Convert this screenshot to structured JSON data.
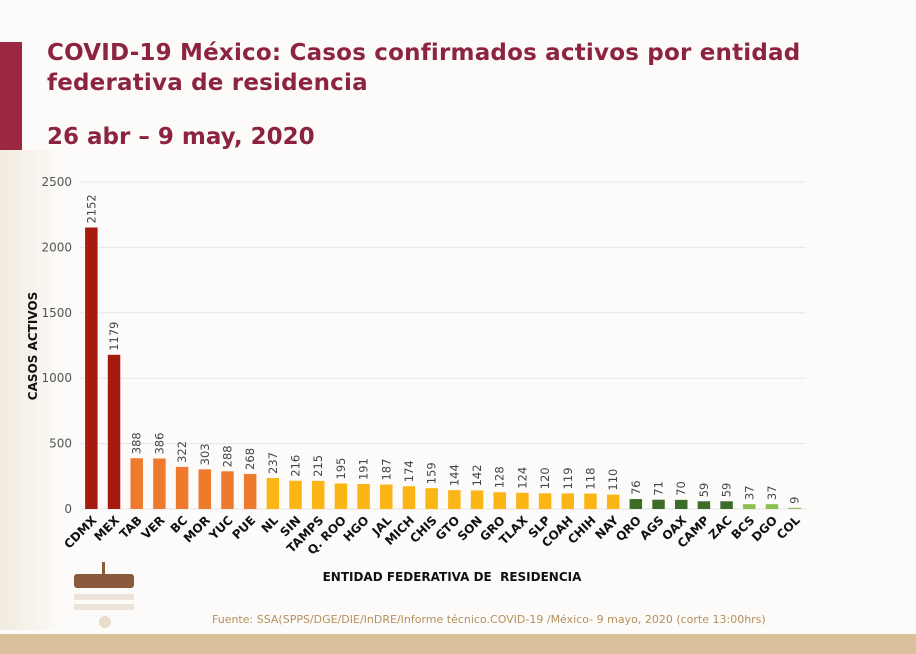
{
  "header": {
    "title": "COVID-19 México: Casos confirmados activos por entidad federativa de residencia",
    "date_range": "26 abr – 9 may, 2020"
  },
  "footer": {
    "source": "Fuente: SSA(SPPS/DGE/DIE/InDRE/Informe técnico.COVID-19 /México- 9 mayo, 2020 (corte 13:00hrs)"
  },
  "colors": {
    "title": "#8c2440",
    "accent": "#9b2743",
    "dark_red": "#a51c0f",
    "orange": "#ee7a2e",
    "yellow": "#fbb515",
    "dark_green": "#3d6b2a",
    "light_green": "#8cc152",
    "footer_band": "#d9c09a",
    "source_text": "#b3915c"
  },
  "chart_data": {
    "type": "bar",
    "title": "COVID-19 México: Casos confirmados activos por entidad federativa de residencia",
    "subtitle": "26 abr – 9 may, 2020",
    "xlabel": "ENTIDAD FEDERATIVA DE  RESIDENCIA",
    "ylabel": "CASOS ACTIVOS",
    "ylim": [
      0,
      2500
    ],
    "yticks": [
      0,
      500,
      1000,
      1500,
      2000,
      2500
    ],
    "grid": true,
    "legend": "none",
    "categories": [
      "CDMX",
      "MEX",
      "TAB",
      "VER",
      "BC",
      "MOR",
      "YUC",
      "PUE",
      "NL",
      "SIN",
      "TAMPS",
      "Q. ROO",
      "HGO",
      "JAL",
      "MICH",
      "CHIS",
      "GTO",
      "SON",
      "GRO",
      "TLAX",
      "SLP",
      "COAH",
      "CHIH",
      "NAY",
      "QRO",
      "AGS",
      "OAX",
      "CAMP",
      "ZAC",
      "BCS",
      "DGO",
      "COL"
    ],
    "values": [
      2152,
      1179,
      388,
      386,
      322,
      303,
      288,
      268,
      237,
      216,
      215,
      195,
      191,
      187,
      174,
      159,
      144,
      142,
      128,
      124,
      120,
      119,
      118,
      110,
      76,
      71,
      70,
      59,
      59,
      37,
      37,
      9
    ],
    "bar_color_groups": [
      "dark_red",
      "dark_red",
      "orange",
      "orange",
      "orange",
      "orange",
      "orange",
      "orange",
      "yellow",
      "yellow",
      "yellow",
      "yellow",
      "yellow",
      "yellow",
      "yellow",
      "yellow",
      "yellow",
      "yellow",
      "yellow",
      "yellow",
      "yellow",
      "yellow",
      "yellow",
      "yellow",
      "dark_green",
      "dark_green",
      "dark_green",
      "dark_green",
      "dark_green",
      "light_green",
      "light_green",
      "light_green"
    ]
  }
}
